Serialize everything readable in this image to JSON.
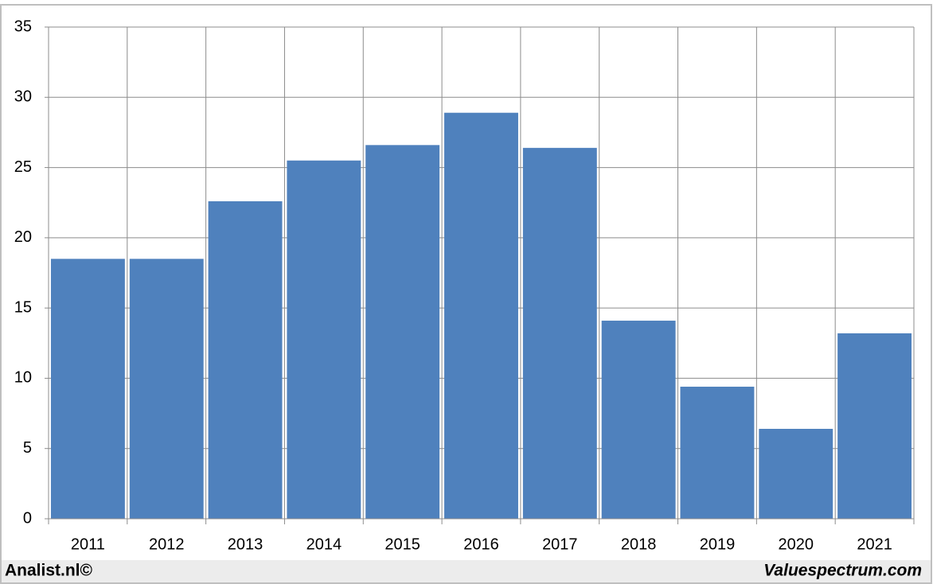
{
  "chart_data": {
    "type": "bar",
    "categories": [
      "2011",
      "2012",
      "2013",
      "2014",
      "2015",
      "2016",
      "2017",
      "2018",
      "2019",
      "2020",
      "2021"
    ],
    "values": [
      18.5,
      18.5,
      22.6,
      25.5,
      26.6,
      28.9,
      26.4,
      14.1,
      9.4,
      6.4,
      13.2
    ],
    "color": "#4f81bd",
    "ylim": [
      0,
      35
    ],
    "yticks": [
      0,
      5,
      10,
      15,
      20,
      25,
      30,
      35
    ],
    "grid": true
  },
  "footer": {
    "left": "Analist.nl©",
    "right": "Valuespectrum.com"
  }
}
